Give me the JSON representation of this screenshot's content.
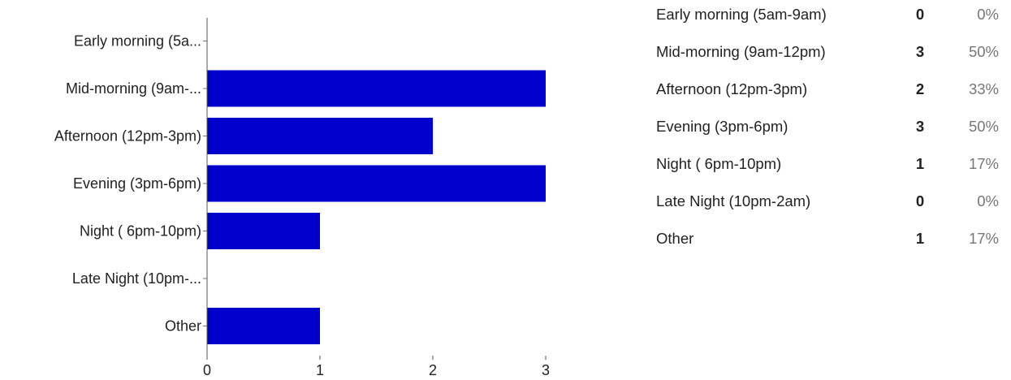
{
  "chart_data": {
    "type": "bar",
    "orientation": "horizontal",
    "categories": [
      "Early morning (5a...",
      "Mid-morning (9am-...",
      "Afternoon (12pm-3pm)",
      "Evening (3pm-6pm)",
      "Night ( 6pm-10pm)",
      "Late Night (10pm-...",
      "Other"
    ],
    "values": [
      0,
      3,
      2,
      3,
      1,
      0,
      1
    ],
    "xlim": [
      0,
      3
    ],
    "xticks": [
      0,
      1,
      2,
      3
    ],
    "grid": false,
    "bar_color": "#0000cc"
  },
  "summary": {
    "rows": [
      {
        "label": "Early morning (5am-9am)",
        "count": "0",
        "percent": "0%"
      },
      {
        "label": "Mid-morning (9am-12pm)",
        "count": "3",
        "percent": "50%"
      },
      {
        "label": "Afternoon (12pm-3pm)",
        "count": "2",
        "percent": "33%"
      },
      {
        "label": "Evening (3pm-6pm)",
        "count": "3",
        "percent": "50%"
      },
      {
        "label": "Night ( 6pm-10pm)",
        "count": "1",
        "percent": "17%"
      },
      {
        "label": "Late Night (10pm-2am)",
        "count": "0",
        "percent": "0%"
      },
      {
        "label": "Other",
        "count": "1",
        "percent": "17%"
      }
    ]
  }
}
